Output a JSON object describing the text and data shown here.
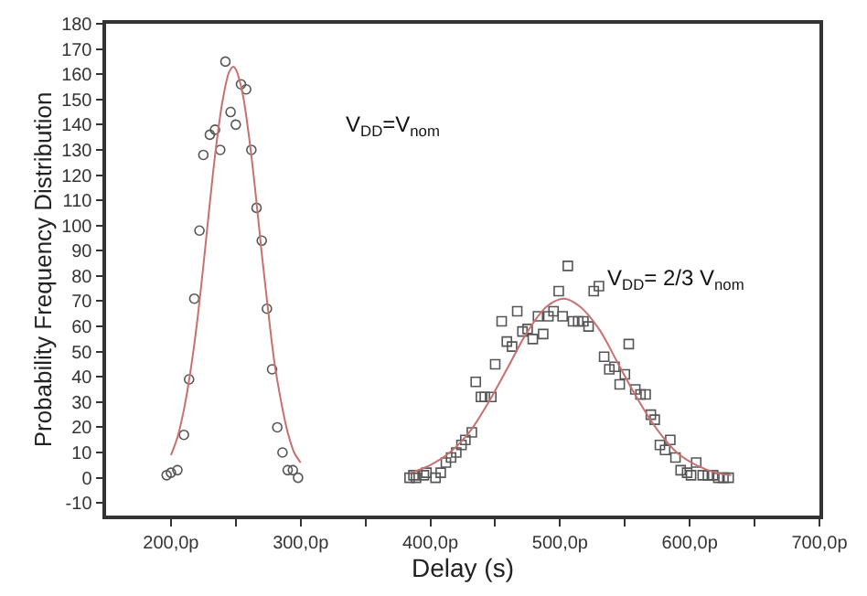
{
  "chart_data": {
    "type": "scatter",
    "xlabel": "Delay (s)",
    "ylabel": "Probability Frequency Distribution",
    "xlim": [
      150,
      700
    ],
    "ylim": [
      -15,
      180
    ],
    "xticks": [
      {
        "value": 200,
        "label": "200,0p"
      },
      {
        "value": 250,
        "label": null
      },
      {
        "value": 300,
        "label": "300,0p"
      },
      {
        "value": 350,
        "label": null
      },
      {
        "value": 400,
        "label": "400,0p"
      },
      {
        "value": 450,
        "label": null
      },
      {
        "value": 500,
        "label": "500,0p"
      },
      {
        "value": 550,
        "label": null
      },
      {
        "value": 600,
        "label": "600,0p"
      },
      {
        "value": 650,
        "label": null
      },
      {
        "value": 700,
        "label": "700,0p"
      }
    ],
    "yticks": [
      -10,
      0,
      10,
      20,
      30,
      40,
      50,
      60,
      70,
      80,
      90,
      100,
      110,
      120,
      130,
      140,
      150,
      160,
      170,
      180
    ],
    "grid": false,
    "annotations": [
      "V$_{DD}$=V$_{nom}$",
      "V$_{DD}$= 2/3 V$_{nom}$"
    ],
    "series": [
      {
        "marker": "circle",
        "color": "#555555",
        "x": [
          196.7,
          200,
          205,
          210,
          214,
          218,
          222,
          225,
          230,
          234,
          238,
          242,
          246,
          250,
          254,
          258,
          262,
          266,
          270,
          274,
          278,
          282,
          286,
          290,
          294,
          298
        ],
        "values": [
          1,
          2,
          3,
          17,
          39,
          71,
          98,
          128,
          136,
          138,
          130,
          165,
          145,
          140,
          156,
          154,
          130,
          107,
          94,
          67,
          43,
          20,
          10,
          3,
          3,
          0
        ]
      },
      {
        "marker": "square",
        "color": "#555555",
        "x": [
          384,
          387,
          389,
          395,
          397,
          404,
          408,
          412,
          416,
          420,
          424,
          427,
          432,
          435,
          439,
          442,
          447,
          450,
          455,
          459,
          463,
          467,
          471,
          475,
          479,
          483,
          487,
          491,
          495,
          499,
          502,
          506,
          510,
          514,
          518,
          522,
          526,
          530,
          534,
          538,
          542,
          546,
          550,
          553,
          558,
          562,
          566,
          570,
          573,
          577,
          581,
          585,
          589,
          593,
          598,
          601,
          605,
          610,
          614,
          618,
          622,
          626,
          630
        ],
        "values": [
          0,
          1,
          0,
          1,
          2,
          0,
          2,
          6,
          8,
          10,
          13,
          15,
          18,
          38,
          32,
          32,
          32,
          45,
          62,
          54,
          52,
          66,
          58,
          59,
          55,
          64,
          57,
          64,
          66,
          74,
          64,
          84,
          62,
          62,
          62,
          60,
          74,
          76,
          48,
          43,
          44,
          37,
          41,
          53,
          35,
          33,
          33,
          25,
          23,
          13,
          11,
          15,
          8,
          3,
          2,
          1,
          6,
          1,
          1,
          1,
          0,
          0,
          0
        ]
      },
      {
        "type": "line",
        "marker": "none",
        "color": "#c87070",
        "x": [
          200,
          205,
          210,
          215,
          220,
          225,
          230,
          235,
          240,
          245,
          248,
          250,
          255,
          260,
          265,
          270,
          275,
          280,
          285,
          290,
          295,
          300
        ],
        "values": [
          9,
          16,
          27,
          42,
          61,
          84,
          109,
          132,
          150,
          161,
          163,
          162,
          153,
          136,
          114,
          89,
          66,
          45,
          30,
          18,
          10,
          6
        ]
      },
      {
        "type": "line",
        "marker": "none",
        "color": "#c87070",
        "x": [
          385,
          400,
          415,
          430,
          445,
          460,
          475,
          490,
          503,
          515,
          530,
          545,
          560,
          575,
          590,
          605,
          620,
          632
        ],
        "values": [
          2,
          5,
          10,
          18,
          30,
          44,
          58,
          68,
          71,
          68,
          59,
          45,
          31,
          19,
          10,
          5,
          2,
          1
        ]
      }
    ]
  }
}
